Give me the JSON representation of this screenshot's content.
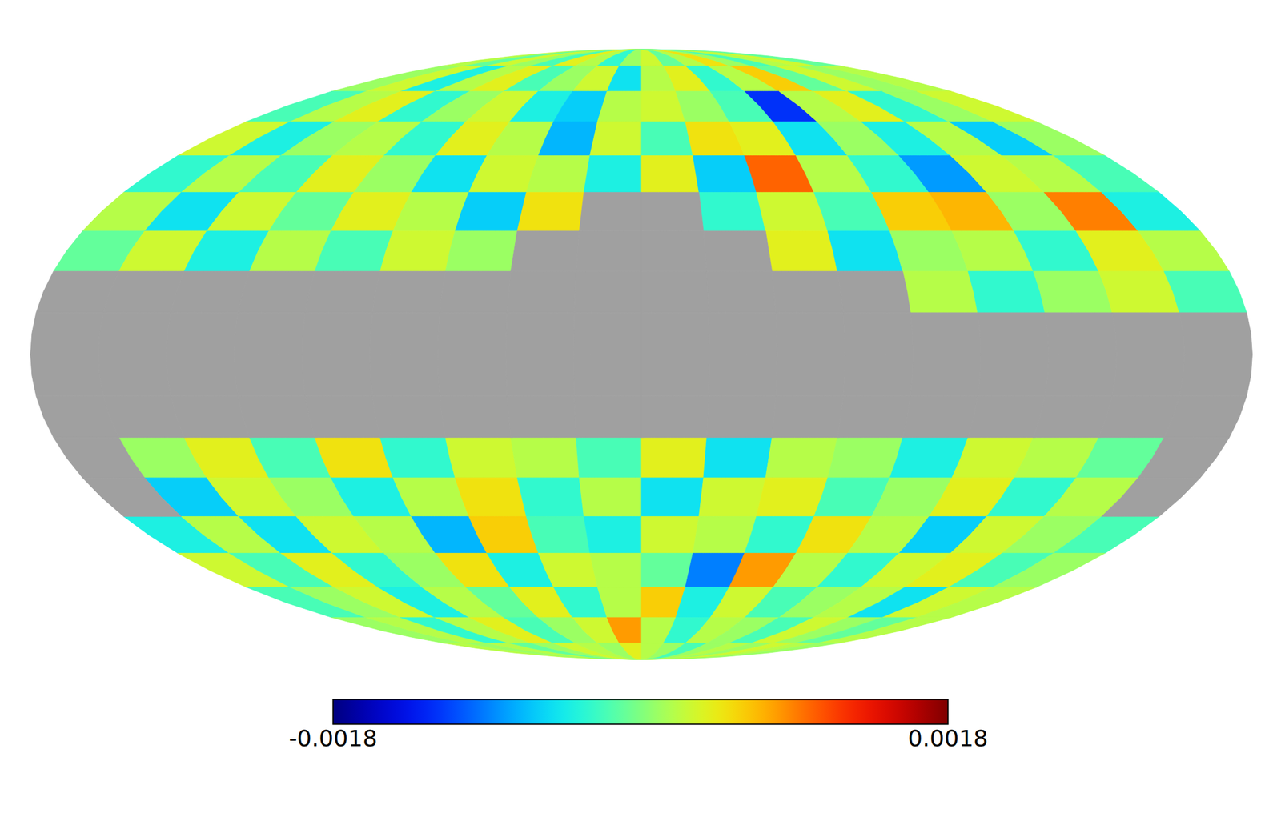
{
  "chart_data": {
    "type": "heatmap",
    "x": [
      -170,
      -150,
      -130,
      -110,
      -90,
      -70,
      -50,
      -30,
      -10,
      10,
      30,
      50,
      70,
      90,
      110,
      130,
      150,
      170
    ],
    "y": [
      85,
      75,
      65,
      55,
      45,
      35,
      25,
      15,
      5,
      -5,
      -15,
      -25,
      -35,
      -45,
      -55,
      -65,
      -75,
      -85
    ],
    "values": [
      [
        0.0002,
        -0.0001,
        0.0003,
        0.0001,
        -0.0002,
        0.0004,
        0.0002,
        -0.0003,
        0.0001,
        0.0003,
        -0.0001,
        0.0002,
        0.0005,
        0.0001,
        -0.0002,
        0.0002,
        0.0003,
        -0.0001
      ],
      [
        0.0001,
        0.0003,
        -0.0004,
        0.0002,
        0.0004,
        -0.0002,
        0.0001,
        0.0003,
        -0.0005,
        0.0002,
        0.0004,
        -0.0003,
        0.0002,
        0.0006,
        -0.0001,
        0.0003,
        0.0001,
        0.0002
      ],
      [
        -0.0002,
        0.0002,
        0.0004,
        -0.0003,
        0.0001,
        0.0003,
        -0.0004,
        -0.0006,
        0.0002,
        0.0003,
        0.0001,
        -0.0002,
        -0.0012,
        0.0002,
        0.0004,
        -0.0003,
        0.0001,
        0.0003
      ],
      [
        0.0003,
        -0.0004,
        0.0001,
        0.0002,
        -0.0003,
        0.0004,
        0.0002,
        -0.0007,
        0.0003,
        -0.0002,
        0.0005,
        0.0004,
        -0.0005,
        0.0001,
        -0.0004,
        0.0002,
        -0.0006,
        0.0001
      ],
      [
        -0.0003,
        0.0002,
        -0.0002,
        0.0004,
        0.0001,
        -0.0005,
        0.0003,
        0.0002,
        -0.0004,
        0.0004,
        -0.0006,
        0.001,
        0.0002,
        -0.0003,
        -0.0008,
        0.0003,
        0.0002,
        -0.0002
      ],
      [
        0.0002,
        -0.0005,
        0.0003,
        -0.0001,
        0.0004,
        0.0002,
        -0.0006,
        0.0005,
        null,
        null,
        -0.0003,
        0.0003,
        -0.0002,
        0.0006,
        0.0007,
        0.0001,
        0.0009,
        -0.0004
      ],
      [
        -0.0001,
        0.0003,
        -0.0004,
        0.0002,
        -0.0002,
        0.0003,
        0.0001,
        null,
        null,
        null,
        null,
        0.0004,
        -0.0005,
        0.0001,
        0.0002,
        -0.0003,
        0.0004,
        0.0002
      ],
      [
        null,
        null,
        null,
        null,
        null,
        null,
        null,
        null,
        null,
        null,
        null,
        null,
        null,
        0.0002,
        -0.0003,
        0.0001,
        0.0003,
        -0.0002
      ],
      [
        null,
        null,
        null,
        null,
        null,
        null,
        null,
        null,
        null,
        null,
        null,
        null,
        null,
        null,
        null,
        null,
        null,
        null
      ],
      [
        null,
        null,
        null,
        null,
        null,
        null,
        null,
        null,
        null,
        null,
        null,
        null,
        null,
        null,
        null,
        null,
        null,
        null
      ],
      [
        null,
        null,
        null,
        null,
        null,
        null,
        null,
        null,
        null,
        null,
        null,
        null,
        null,
        null,
        null,
        null,
        null,
        null
      ],
      [
        null,
        0.0001,
        0.0004,
        -0.0002,
        0.0005,
        -0.0003,
        0.0003,
        0.0002,
        -0.0002,
        0.0004,
        -0.0005,
        0.0002,
        0.0001,
        -0.0004,
        0.0003,
        0.0002,
        -0.0001,
        null
      ],
      [
        null,
        -0.0006,
        0.0003,
        0.0001,
        -0.0004,
        0.0002,
        0.0005,
        -0.0003,
        0.0002,
        -0.0005,
        0.0003,
        0.0004,
        -0.0002,
        0.0001,
        0.0004,
        -0.0003,
        0.0002,
        null
      ],
      [
        -0.0004,
        0.0002,
        -0.0005,
        0.0003,
        0.0002,
        -0.0007,
        0.0006,
        -0.0002,
        -0.0004,
        0.0003,
        0.0002,
        -0.0003,
        0.0005,
        0.0002,
        -0.0006,
        0.0003,
        0.0001,
        -0.0002
      ],
      [
        0.0003,
        -0.0002,
        0.0004,
        -0.0003,
        0.0001,
        0.0005,
        -0.0004,
        0.0003,
        0.0002,
        -0.0001,
        -0.0009,
        0.0008,
        0.0002,
        -0.0003,
        0.0003,
        0.0004,
        -0.0002,
        0.0001
      ],
      [
        -0.0002,
        0.0001,
        0.0003,
        -0.0004,
        0.0002,
        -0.0001,
        0.0004,
        -0.0003,
        0.0002,
        0.0006,
        -0.0004,
        0.0003,
        -0.0002,
        0.0001,
        0.0002,
        -0.0005,
        0.0003,
        0.0002
      ],
      [
        0.0001,
        0.0002,
        -0.0003,
        0.0002,
        0.0004,
        -0.0002,
        0.0001,
        0.0003,
        0.0008,
        0.0002,
        -0.0003,
        0.0002,
        0.0001,
        -0.0002,
        0.0003,
        0.0001,
        -0.0001,
        0.0002
      ],
      [
        0.0002,
        0.0001,
        0.0002,
        -0.0001,
        0.0001,
        0.0003,
        0.0002,
        0.0001,
        0.0004,
        0.0002,
        0.0001,
        -0.0002,
        0.0001,
        0.0002,
        0.0001,
        0.0003,
        0.0002,
        0.0001
      ]
    ],
    "colorbar": {
      "range": [
        -0.0018,
        0.0018
      ],
      "ticks": [
        -0.0018,
        0.0018
      ]
    }
  }
}
